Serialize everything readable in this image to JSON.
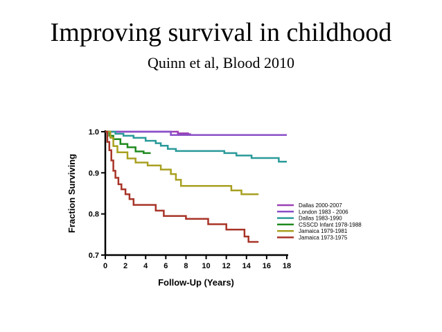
{
  "slide": {
    "title": "Improving survival in childhood",
    "subtitle": "Quinn et al, Blood 2010"
  },
  "chart_data": {
    "type": "line",
    "title": "Improving survival in childhood",
    "xlabel": "Follow-Up (Years)",
    "ylabel": "Fraction Surviving",
    "xlim": [
      0,
      18
    ],
    "ylim": [
      0.7,
      1.0
    ],
    "xticks": [
      0,
      2,
      4,
      6,
      8,
      10,
      12,
      14,
      16,
      18
    ],
    "yticks": [
      0.7,
      0.8,
      0.9,
      1.0
    ],
    "xtick_labels": [
      "0",
      "2",
      "4",
      "6",
      "8",
      "10",
      "12",
      "14",
      "16",
      "18"
    ],
    "ytick_labels": [
      "0.7",
      "0.8",
      "0.9",
      "1.0"
    ],
    "legend_position": "bottom-right",
    "series": [
      {
        "name": "Dallas 2000-2007",
        "color": "#9b3fb5",
        "points": [
          [
            0,
            1.0
          ],
          [
            7.2,
            1.0
          ],
          [
            7.2,
            0.996
          ],
          [
            8.2,
            0.996
          ],
          [
            8.2,
            0.994
          ],
          [
            8.5,
            0.994
          ]
        ]
      },
      {
        "name": "London 1983 - 2006",
        "color": "#8a4fc8",
        "points": [
          [
            0,
            1.0
          ],
          [
            6.5,
            1.0
          ],
          [
            6.5,
            0.992
          ],
          [
            18,
            0.992
          ]
        ]
      },
      {
        "name": "Dallas 1983-1990",
        "color": "#2a9a9a",
        "points": [
          [
            0,
            1.0
          ],
          [
            1.0,
            1.0
          ],
          [
            1.0,
            0.995
          ],
          [
            1.8,
            0.995
          ],
          [
            1.8,
            0.99
          ],
          [
            2.8,
            0.99
          ],
          [
            2.8,
            0.985
          ],
          [
            4.0,
            0.985
          ],
          [
            4.0,
            0.978
          ],
          [
            5.0,
            0.978
          ],
          [
            5.0,
            0.972
          ],
          [
            5.5,
            0.972
          ],
          [
            5.5,
            0.966
          ],
          [
            6.2,
            0.966
          ],
          [
            6.2,
            0.958
          ],
          [
            7.0,
            0.958
          ],
          [
            7.0,
            0.953
          ],
          [
            11.8,
            0.953
          ],
          [
            11.8,
            0.948
          ],
          [
            13.0,
            0.948
          ],
          [
            13.0,
            0.942
          ],
          [
            14.5,
            0.942
          ],
          [
            14.5,
            0.936
          ],
          [
            17.2,
            0.936
          ],
          [
            17.2,
            0.927
          ],
          [
            18,
            0.927
          ]
        ]
      },
      {
        "name": "CSSCD Infant 1978-1988",
        "color": "#1f8a1f",
        "points": [
          [
            0,
            1.0
          ],
          [
            0.4,
            1.0
          ],
          [
            0.4,
            0.99
          ],
          [
            0.8,
            0.99
          ],
          [
            0.8,
            0.982
          ],
          [
            1.5,
            0.982
          ],
          [
            1.5,
            0.97
          ],
          [
            2.2,
            0.97
          ],
          [
            2.2,
            0.962
          ],
          [
            3.0,
            0.962
          ],
          [
            3.0,
            0.952
          ],
          [
            3.8,
            0.952
          ],
          [
            3.8,
            0.948
          ],
          [
            4.5,
            0.948
          ]
        ]
      },
      {
        "name": "Jamaica 1979-1981",
        "color": "#a8a020",
        "points": [
          [
            0,
            1.0
          ],
          [
            0.5,
            1.0
          ],
          [
            0.5,
            0.985
          ],
          [
            0.8,
            0.985
          ],
          [
            0.8,
            0.965
          ],
          [
            1.2,
            0.965
          ],
          [
            1.2,
            0.95
          ],
          [
            2.2,
            0.95
          ],
          [
            2.2,
            0.935
          ],
          [
            3.0,
            0.935
          ],
          [
            3.0,
            0.925
          ],
          [
            4.2,
            0.925
          ],
          [
            4.2,
            0.918
          ],
          [
            5.5,
            0.918
          ],
          [
            5.5,
            0.908
          ],
          [
            6.5,
            0.908
          ],
          [
            6.5,
            0.897
          ],
          [
            7.0,
            0.897
          ],
          [
            7.0,
            0.883
          ],
          [
            7.5,
            0.883
          ],
          [
            7.5,
            0.868
          ],
          [
            12.5,
            0.868
          ],
          [
            12.5,
            0.857
          ],
          [
            13.5,
            0.857
          ],
          [
            13.5,
            0.848
          ],
          [
            15.2,
            0.848
          ]
        ]
      },
      {
        "name": "Jamaica 1973-1975",
        "color": "#a83428",
        "points": [
          [
            0,
            1.0
          ],
          [
            0.2,
            1.0
          ],
          [
            0.2,
            0.975
          ],
          [
            0.4,
            0.975
          ],
          [
            0.4,
            0.955
          ],
          [
            0.6,
            0.955
          ],
          [
            0.6,
            0.93
          ],
          [
            0.8,
            0.93
          ],
          [
            0.8,
            0.905
          ],
          [
            1.0,
            0.905
          ],
          [
            1.0,
            0.888
          ],
          [
            1.3,
            0.888
          ],
          [
            1.3,
            0.872
          ],
          [
            1.6,
            0.872
          ],
          [
            1.6,
            0.86
          ],
          [
            2.0,
            0.86
          ],
          [
            2.0,
            0.848
          ],
          [
            2.4,
            0.848
          ],
          [
            2.4,
            0.836
          ],
          [
            2.8,
            0.836
          ],
          [
            2.8,
            0.822
          ],
          [
            5.0,
            0.822
          ],
          [
            5.0,
            0.808
          ],
          [
            5.8,
            0.808
          ],
          [
            5.8,
            0.795
          ],
          [
            8.0,
            0.795
          ],
          [
            8.0,
            0.788
          ],
          [
            10.2,
            0.788
          ],
          [
            10.2,
            0.775
          ],
          [
            12.0,
            0.775
          ],
          [
            12.0,
            0.762
          ],
          [
            13.8,
            0.762
          ],
          [
            13.8,
            0.745
          ],
          [
            14.2,
            0.745
          ],
          [
            14.2,
            0.732
          ],
          [
            15.2,
            0.732
          ]
        ]
      }
    ]
  }
}
